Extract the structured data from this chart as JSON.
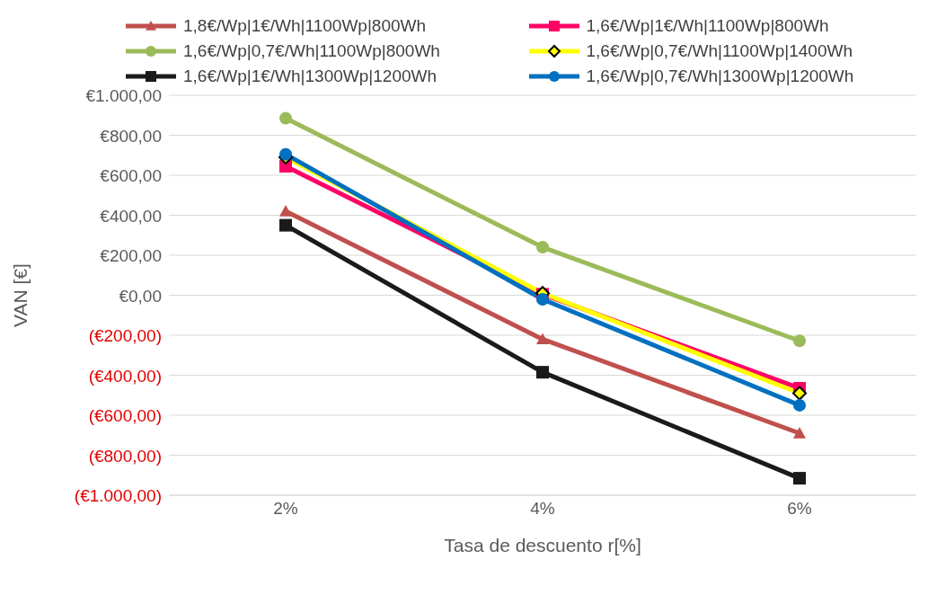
{
  "chart_data": {
    "type": "line",
    "xlabel": "Tasa de descuento r[%]",
    "ylabel": "VAN [€]",
    "categories": [
      "2%",
      "4%",
      "6%"
    ],
    "series": [
      {
        "name": "1,8€/Wp|1€/Wh|1100Wp|800Wh",
        "color": "#c0504d",
        "marker": "triangle",
        "values": [
          420,
          -220,
          -690
        ]
      },
      {
        "name": "1,6€/Wp|1€/Wh|1100Wp|800Wh",
        "color": "#ff0066",
        "marker": "square",
        "values": [
          645,
          5,
          -465
        ]
      },
      {
        "name": "1,6€/Wp|0,7€/Wh|1100Wp|800Wh",
        "color": "#9bbb59",
        "marker": "circle",
        "values": [
          885,
          240,
          -228
        ]
      },
      {
        "name": "1,6€/Wp|0,7€/Wh|1100Wp|1400Wh",
        "color": "#ffff00",
        "marker": "diamond",
        "values": [
          690,
          10,
          -490
        ]
      },
      {
        "name": "1,6€/Wp|1€/Wh|1300Wp|1200Wh",
        "color": "#1a1a1a",
        "marker": "square",
        "values": [
          350,
          -385,
          -915
        ]
      },
      {
        "name": "1,6€/Wp|0,7€/Wh|1300Wp|1200Wh",
        "color": "#0070c0",
        "marker": "circle",
        "values": [
          705,
          -20,
          -550
        ]
      }
    ],
    "ylim": [
      -1000,
      1000
    ],
    "yticks": [
      {
        "value": -1000,
        "label": "(€1.000,00)"
      },
      {
        "value": -800,
        "label": "(€800,00)"
      },
      {
        "value": -600,
        "label": "(€600,00)"
      },
      {
        "value": -400,
        "label": "(€400,00)"
      },
      {
        "value": -200,
        "label": "(€200,00)"
      },
      {
        "value": 0,
        "label": "€0,00"
      },
      {
        "value": 200,
        "label": "€200,00"
      },
      {
        "value": 400,
        "label": "€400,00"
      },
      {
        "value": 600,
        "label": "€600,00"
      },
      {
        "value": 800,
        "label": "€800,00"
      },
      {
        "value": 1000,
        "label": "€1.000,00"
      }
    ],
    "grid": "y",
    "legend": "top",
    "line_style": "solid"
  }
}
